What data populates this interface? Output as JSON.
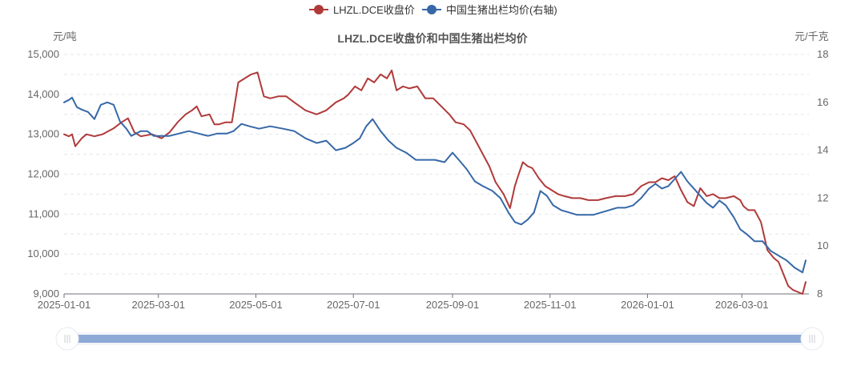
{
  "chart_data": {
    "type": "line",
    "title": "LHZL.DCE收盘价和中国生猪出栏均价",
    "y_left_unit": "元/吨",
    "y_right_unit": "元/千克",
    "y_left_ticks": [
      "9,000",
      "10,000",
      "11,000",
      "12,000",
      "13,000",
      "14,000",
      "15,000"
    ],
    "y_left_ticks_values": [
      9000,
      10000,
      11000,
      12000,
      13000,
      14000,
      15000
    ],
    "y_right_ticks": [
      "8",
      "10",
      "12",
      "14",
      "16",
      "18"
    ],
    "y_right_ticks_values": [
      8,
      10,
      12,
      14,
      16,
      18
    ],
    "ylim_left": [
      9000,
      15000
    ],
    "ylim_right": [
      8,
      18
    ],
    "x_ticks": [
      "2025-01-01",
      "2025-03-01",
      "2025-05-01",
      "2025-07-01",
      "2025-09-01",
      "2025-11-01",
      "2026-01-01",
      "2026-03-01"
    ],
    "xlim": [
      "2025-01-01",
      "2026-04-12"
    ],
    "legend_position": "top-center",
    "grid": "horizontal dashed",
    "series": [
      {
        "name": "LHZL.DCE收盘价",
        "axis": "left",
        "color": "#b03a3a",
        "x": [
          "2025-01-01",
          "2025-01-04",
          "2025-01-06",
          "2025-01-08",
          "2025-01-12",
          "2025-01-15",
          "2025-01-20",
          "2025-01-25",
          "2025-02-01",
          "2025-02-06",
          "2025-02-10",
          "2025-02-14",
          "2025-02-18",
          "2025-02-25",
          "2025-03-03",
          "2025-03-08",
          "2025-03-13",
          "2025-03-18",
          "2025-03-22",
          "2025-03-25",
          "2025-03-28",
          "2025-04-02",
          "2025-04-05",
          "2025-04-08",
          "2025-04-12",
          "2025-04-16",
          "2025-04-20",
          "2025-04-24",
          "2025-04-28",
          "2025-05-02",
          "2025-05-06",
          "2025-05-10",
          "2025-05-15",
          "2025-05-20",
          "2025-05-25",
          "2025-06-01",
          "2025-06-08",
          "2025-06-14",
          "2025-06-20",
          "2025-06-25",
          "2025-06-28",
          "2025-07-02",
          "2025-07-06",
          "2025-07-10",
          "2025-07-14",
          "2025-07-18",
          "2025-07-22",
          "2025-07-25",
          "2025-07-28",
          "2025-08-01",
          "2025-08-05",
          "2025-08-10",
          "2025-08-15",
          "2025-08-20",
          "2025-08-25",
          "2025-08-30",
          "2025-09-03",
          "2025-09-08",
          "2025-09-12",
          "2025-09-16",
          "2025-09-20",
          "2025-09-24",
          "2025-09-28",
          "2025-10-03",
          "2025-10-07",
          "2025-10-10",
          "2025-10-12",
          "2025-10-15",
          "2025-10-18",
          "2025-10-21",
          "2025-10-25",
          "2025-10-29",
          "2025-11-02",
          "2025-11-06",
          "2025-11-10",
          "2025-11-15",
          "2025-11-20",
          "2025-11-25",
          "2025-12-01",
          "2025-12-06",
          "2025-12-12",
          "2025-12-18",
          "2025-12-23",
          "2025-12-28",
          "2026-01-02",
          "2026-01-06",
          "2026-01-10",
          "2026-01-14",
          "2026-01-18",
          "2026-01-22",
          "2026-01-26",
          "2026-01-30",
          "2026-02-03",
          "2026-02-07",
          "2026-02-11",
          "2026-02-15",
          "2026-02-19",
          "2026-02-24",
          "2026-02-28",
          "2026-03-02",
          "2026-03-05",
          "2026-03-09",
          "2026-03-13",
          "2026-03-17",
          "2026-03-21",
          "2026-03-24",
          "2026-03-27",
          "2026-03-30",
          "2026-04-02",
          "2026-04-05",
          "2026-04-08",
          "2026-04-10"
        ],
        "values": [
          13000,
          12950,
          13000,
          12700,
          12900,
          13000,
          12950,
          13000,
          13150,
          13300,
          13400,
          13050,
          12950,
          13000,
          12900,
          13050,
          13300,
          13500,
          13600,
          13700,
          13450,
          13500,
          13250,
          13250,
          13300,
          13300,
          14300,
          14400,
          14500,
          14550,
          13950,
          13900,
          13950,
          13950,
          13800,
          13600,
          13500,
          13600,
          13800,
          13900,
          14000,
          14200,
          14100,
          14400,
          14300,
          14500,
          14400,
          14600,
          14100,
          14200,
          14150,
          14200,
          13900,
          13900,
          13700,
          13500,
          13300,
          13250,
          13100,
          12800,
          12500,
          12200,
          11800,
          11500,
          11150,
          11700,
          11950,
          12300,
          12200,
          12150,
          11900,
          11700,
          11600,
          11500,
          11450,
          11400,
          11400,
          11350,
          11350,
          11400,
          11450,
          11450,
          11500,
          11700,
          11800,
          11800,
          11900,
          11850,
          11950,
          11600,
          11300,
          11200,
          11650,
          11450,
          11500,
          11400,
          11400,
          11450,
          11350,
          11200,
          11100,
          11100,
          10800,
          10100,
          9900,
          9800,
          9500,
          9200,
          9100,
          9050,
          9000,
          9300
        ]
      },
      {
        "name": "中国生猪出栏均价(右轴)",
        "axis": "right",
        "color": "#3668a8",
        "x": [
          "2025-01-01",
          "2025-01-04",
          "2025-01-06",
          "2025-01-09",
          "2025-01-12",
          "2025-01-16",
          "2025-01-20",
          "2025-01-24",
          "2025-01-28",
          "2025-02-01",
          "2025-02-05",
          "2025-02-09",
          "2025-02-12",
          "2025-02-15",
          "2025-02-18",
          "2025-02-22",
          "2025-02-26",
          "2025-03-02",
          "2025-03-08",
          "2025-03-14",
          "2025-03-20",
          "2025-03-26",
          "2025-04-01",
          "2025-04-07",
          "2025-04-13",
          "2025-04-17",
          "2025-04-22",
          "2025-04-27",
          "2025-05-03",
          "2025-05-10",
          "2025-05-18",
          "2025-05-25",
          "2025-06-01",
          "2025-06-08",
          "2025-06-14",
          "2025-06-20",
          "2025-06-26",
          "2025-07-01",
          "2025-07-05",
          "2025-07-09",
          "2025-07-13",
          "2025-07-18",
          "2025-07-23",
          "2025-07-28",
          "2025-08-03",
          "2025-08-09",
          "2025-08-15",
          "2025-08-21",
          "2025-08-27",
          "2025-09-01",
          "2025-09-05",
          "2025-09-10",
          "2025-09-15",
          "2025-09-20",
          "2025-09-26",
          "2025-10-01",
          "2025-10-06",
          "2025-10-10",
          "2025-10-14",
          "2025-10-18",
          "2025-10-22",
          "2025-10-26",
          "2025-10-30",
          "2025-11-03",
          "2025-11-08",
          "2025-11-13",
          "2025-11-18",
          "2025-11-23",
          "2025-11-28",
          "2025-12-03",
          "2025-12-08",
          "2025-12-13",
          "2025-12-18",
          "2025-12-23",
          "2025-12-28",
          "2026-01-02",
          "2026-01-06",
          "2026-01-10",
          "2026-01-14",
          "2026-01-18",
          "2026-01-22",
          "2026-01-26",
          "2026-01-30",
          "2026-02-03",
          "2026-02-07",
          "2026-02-11",
          "2026-02-15",
          "2026-02-19",
          "2026-02-24",
          "2026-02-28",
          "2026-03-04",
          "2026-03-09",
          "2026-03-14",
          "2026-03-19",
          "2026-03-24",
          "2026-03-29",
          "2026-04-03",
          "2026-04-08",
          "2026-04-10"
        ],
        "values": [
          16.0,
          16.1,
          16.2,
          15.8,
          15.7,
          15.6,
          15.3,
          15.9,
          16.0,
          15.9,
          15.2,
          14.9,
          14.6,
          14.7,
          14.8,
          14.8,
          14.6,
          14.6,
          14.6,
          14.7,
          14.8,
          14.7,
          14.6,
          14.7,
          14.7,
          14.8,
          15.1,
          15.0,
          14.9,
          15.0,
          14.9,
          14.8,
          14.5,
          14.3,
          14.4,
          14.0,
          14.1,
          14.3,
          14.5,
          15.0,
          15.3,
          14.8,
          14.4,
          14.1,
          13.9,
          13.6,
          13.6,
          13.6,
          13.5,
          13.9,
          13.6,
          13.2,
          12.7,
          12.5,
          12.3,
          12.0,
          11.4,
          11.0,
          10.9,
          11.1,
          11.4,
          12.3,
          12.1,
          11.7,
          11.5,
          11.4,
          11.3,
          11.3,
          11.3,
          11.4,
          11.5,
          11.6,
          11.6,
          11.7,
          12.0,
          12.4,
          12.6,
          12.4,
          12.5,
          12.8,
          13.1,
          12.7,
          12.4,
          12.1,
          11.8,
          11.6,
          11.9,
          11.7,
          11.2,
          10.7,
          10.5,
          10.2,
          10.2,
          9.8,
          9.6,
          9.4,
          9.1,
          8.9,
          9.4
        ]
      }
    ]
  }
}
